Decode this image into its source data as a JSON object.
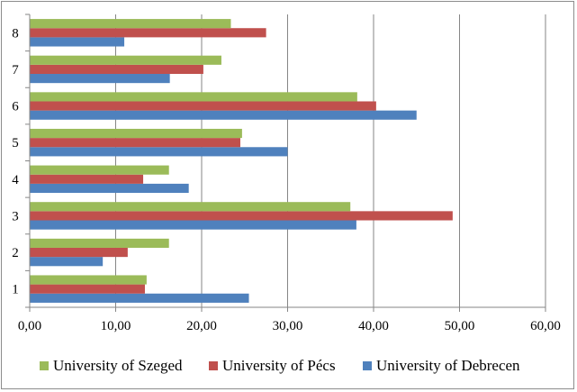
{
  "chart_data": {
    "type": "bar",
    "orientation": "horizontal",
    "categories": [
      "1",
      "2",
      "3",
      "4",
      "5",
      "6",
      "7",
      "8"
    ],
    "series": [
      {
        "name": "University of Debrecen",
        "color": "#4f81bd",
        "values": [
          25.5,
          8.5,
          38.0,
          18.5,
          30.0,
          45.0,
          16.3,
          11.0
        ]
      },
      {
        "name": "University of Pécs",
        "color": "#c0504d",
        "values": [
          13.4,
          11.4,
          49.2,
          13.2,
          24.5,
          40.3,
          20.2,
          27.5
        ]
      },
      {
        "name": "University of Szeged",
        "color": "#9bbb59",
        "values": [
          13.6,
          16.2,
          37.3,
          16.2,
          24.7,
          38.1,
          22.3,
          23.4
        ]
      }
    ],
    "xlim": [
      0,
      60
    ],
    "x_ticks": [
      "0,00",
      "10,00",
      "20,00",
      "30,00",
      "40,00",
      "50,00",
      "60,00"
    ],
    "grid": "vertical",
    "legend_position": "bottom",
    "legend_order": [
      "University of Szeged",
      "University of Pécs",
      "University of Debrecen"
    ],
    "title": "",
    "xlabel": "",
    "ylabel": ""
  }
}
